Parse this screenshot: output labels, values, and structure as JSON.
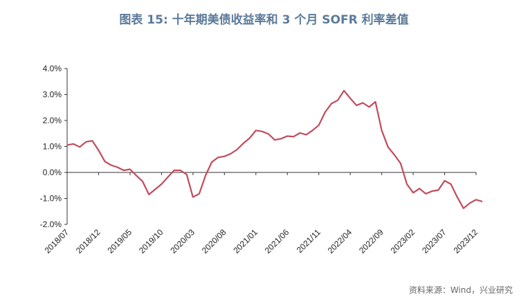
{
  "page": {
    "title": "图表 15: 十年期美债收益率和 3 个月 SOFR 利率差值",
    "source": "资料来源：Wind，兴业研究"
  },
  "chart_data": {
    "type": "line",
    "title": "图表 15: 十年期美债收益率和 3 个月 SOFR 利率差值",
    "xlabel": "",
    "ylabel": "",
    "ylim": [
      -0.02,
      0.04
    ],
    "y_ticks": [
      "4.0%",
      "3.0%",
      "2.0%",
      "1.0%",
      "0.0%",
      "-1.0%",
      "-2.0%"
    ],
    "x_ticks": [
      "2018/07",
      "2018/12",
      "2019/05",
      "2019/10",
      "2020/03",
      "2020/08",
      "2021/01",
      "2021/06",
      "2021/11",
      "2022/04",
      "2022/09",
      "2023/02",
      "2023/07",
      "2023/12"
    ],
    "colors": {
      "series": "#c24a5c",
      "axis": "#333333"
    },
    "grid": false,
    "series": [
      {
        "x": [
          "2018/07",
          "2018/08",
          "2018/09",
          "2018/10",
          "2018/11",
          "2018/12",
          "2019/01",
          "2019/02",
          "2019/03",
          "2019/04",
          "2019/05",
          "2019/06",
          "2019/07",
          "2019/08",
          "2019/09",
          "2019/10",
          "2019/11",
          "2019/12",
          "2020/01",
          "2020/02",
          "2020/03",
          "2020/04",
          "2020/05",
          "2020/06",
          "2020/07",
          "2020/08",
          "2020/09",
          "2020/10",
          "2020/11",
          "2020/12",
          "2021/01",
          "2021/02",
          "2021/03",
          "2021/04",
          "2021/05",
          "2021/06",
          "2021/07",
          "2021/08",
          "2021/09",
          "2021/10",
          "2021/11",
          "2021/12",
          "2022/01",
          "2022/02",
          "2022/03",
          "2022/04",
          "2022/05",
          "2022/06",
          "2022/07",
          "2022/08",
          "2022/09",
          "2022/10",
          "2022/11",
          "2022/12",
          "2023/01",
          "2023/02",
          "2023/03",
          "2023/04",
          "2023/05",
          "2023/06",
          "2023/07",
          "2023/08",
          "2023/09",
          "2023/10",
          "2023/11",
          "2023/12",
          "2024/01"
        ],
        "values": [
          0.0105,
          0.011,
          0.0098,
          0.0118,
          0.0122,
          0.0085,
          0.0042,
          0.0028,
          0.002,
          0.0008,
          0.0012,
          -0.0012,
          -0.0035,
          -0.0085,
          -0.0065,
          -0.0045,
          -0.0018,
          0.0008,
          0.0008,
          -0.0008,
          -0.0095,
          -0.0082,
          -0.0012,
          0.004,
          0.0058,
          0.0062,
          0.0072,
          0.0088,
          0.0112,
          0.0132,
          0.0162,
          0.0158,
          0.0148,
          0.0125,
          0.013,
          0.014,
          0.0138,
          0.0152,
          0.0145,
          0.0162,
          0.0182,
          0.0232,
          0.0265,
          0.0278,
          0.0315,
          0.0285,
          0.0258,
          0.0268,
          0.0252,
          0.0272,
          0.0162,
          0.0098,
          0.0068,
          0.0035,
          -0.0045,
          -0.0078,
          -0.0062,
          -0.0082,
          -0.0072,
          -0.0068,
          -0.0032,
          -0.0045,
          -0.0095,
          -0.0138,
          -0.0118,
          -0.0105,
          -0.0112
        ]
      }
    ]
  }
}
